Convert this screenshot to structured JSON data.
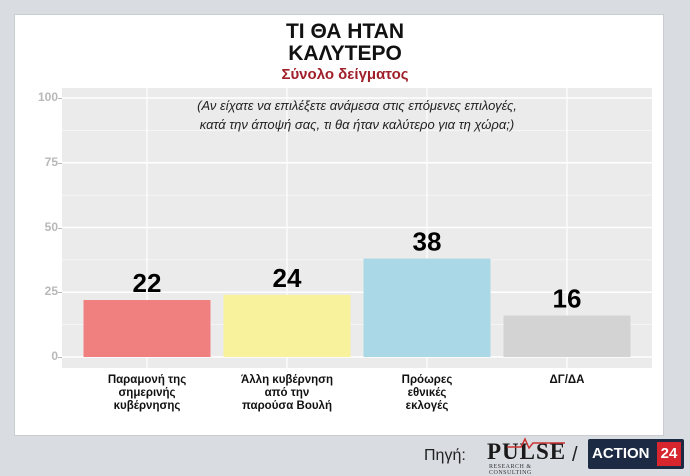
{
  "header": {
    "title_line1": "ΤΙ ΘΑ ΗΤΑΝ",
    "title_line2": "ΚΑΛΥΤΕΡΟ",
    "subtitle": "Σύνολο δείγματος",
    "question_line1": "(Αν είχατε να επιλέξετε ανάμεσα στις επόμενες επιλογές,",
    "question_line2": "κατά την άποψή σας, τι θα ήταν καλύτερο για τη χώρα;)"
  },
  "footer": {
    "source_label": "Πηγή:",
    "pulse_logo_text": "PULSE",
    "pulse_logo_sub": "RESEARCH & CONSULTING",
    "slash": "/",
    "action_logo_word": "ACTION",
    "action_logo_num": "24"
  },
  "chart_data": {
    "type": "bar",
    "title": "ΤΙ ΘΑ ΗΤΑΝ ΚΑΛΥΤΕΡΟ",
    "subtitle": "Σύνολο δείγματος",
    "categories": [
      [
        "Παραμονή της",
        "σημερινής",
        "κυβέρνησης"
      ],
      [
        "Άλλη κυβέρνηση",
        "από την",
        "παρούσα Βουλή"
      ],
      [
        "Πρόωρες",
        "εθνικές",
        "εκλογές"
      ],
      [
        "ΔΓ/ΔΑ"
      ]
    ],
    "values": [
      22,
      24,
      38,
      16
    ],
    "colors": [
      "#f08080",
      "#f7f29b",
      "#aad8e6",
      "#d3d3d3"
    ],
    "ylim": [
      0,
      100
    ],
    "yticks": [
      0,
      25,
      50,
      75,
      100
    ],
    "xlabel": "",
    "ylabel": "",
    "grid": true,
    "legend": "none"
  }
}
